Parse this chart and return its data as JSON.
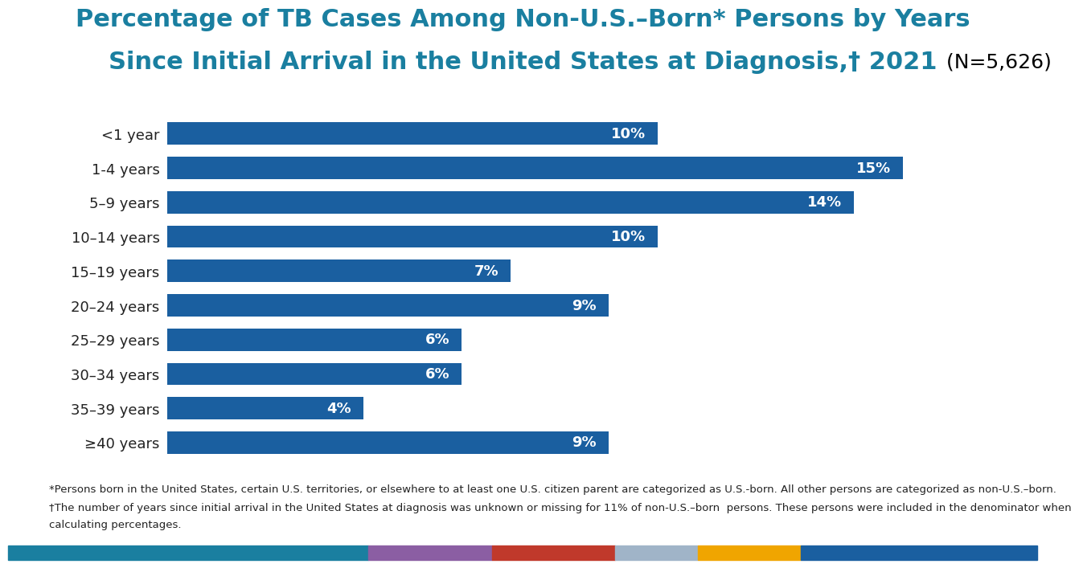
{
  "title_line1": "Percentage of TB Cases Among Non-U.S.–Born* Persons by Years",
  "title_line2": "Since Initial Arrival in the United States at Diagnosis,† 2021",
  "title_n": "(N=5,626)",
  "title_color": "#1a7fa0",
  "title_n_color": "#000000",
  "categories": [
    "<1 year",
    "1-4 years",
    "5–9 years",
    "10–14 years",
    "15–19 years",
    "20–24 years",
    "25–29 years",
    "30–34 years",
    "35–39 years",
    "≥40 years"
  ],
  "values": [
    10,
    15,
    14,
    10,
    7,
    9,
    6,
    6,
    4,
    9
  ],
  "bar_color": "#1a5fa0",
  "label_color": "#ffffff",
  "background_color": "#ffffff",
  "xlim": [
    0,
    17
  ],
  "footnote1": "*Persons born in the United States, certain U.S. territories, or elsewhere to at least one U.S. citizen parent are categorized as U.S.-born. All other persons are categorized as non-U.S.–born.",
  "footnote2": "†The number of years since initial arrival in the United States at diagnosis was unknown or missing for 11% of non-U.S.–born  persons. These persons were included in the denominator when",
  "footnote3": "calculating percentages.",
  "footer_colors": [
    "#1a7fa0",
    "#8b5ea3",
    "#c0392b",
    "#a0b4c8",
    "#f0a500",
    "#1a5fa0"
  ],
  "footer_widths": [
    0.35,
    0.12,
    0.12,
    0.08,
    0.1,
    0.23
  ],
  "bar_label_fontsize": 13,
  "ytick_fontsize": 13,
  "title_fontsize": 22,
  "footnote_fontsize": 9.5
}
